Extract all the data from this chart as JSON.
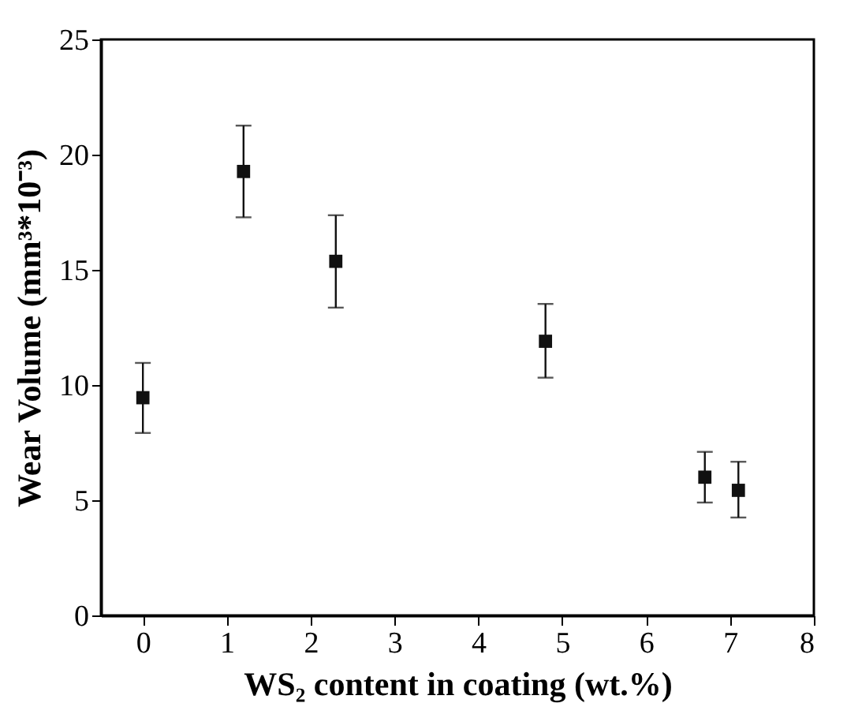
{
  "chart_data": {
    "type": "scatter",
    "xlabel": "WS₂ content in coating (wt.%)",
    "ylabel": "Wear Volume (mm³*10⁻³)",
    "x": [
      0,
      1.2,
      2.3,
      4.8,
      6.7,
      7.1
    ],
    "series": [
      {
        "color": "#111111",
        "values": [
          9.45,
          19.27,
          15.37,
          11.9,
          6.0,
          5.43
        ],
        "errors": [
          [
            7.92,
            10.96
          ],
          [
            17.28,
            21.26
          ],
          [
            13.36,
            17.37
          ],
          [
            10.32,
            13.52
          ],
          [
            4.9,
            7.1
          ],
          [
            4.25,
            6.67
          ]
        ]
      }
    ],
    "marker": "square",
    "xlim": [
      -0.5,
      8
    ],
    "ylim": [
      0,
      25
    ],
    "xticks": [
      0,
      1,
      2,
      3,
      4,
      5,
      6,
      7,
      8
    ],
    "yticks": [
      0,
      5,
      10,
      15,
      20,
      25
    ],
    "grid": false
  }
}
